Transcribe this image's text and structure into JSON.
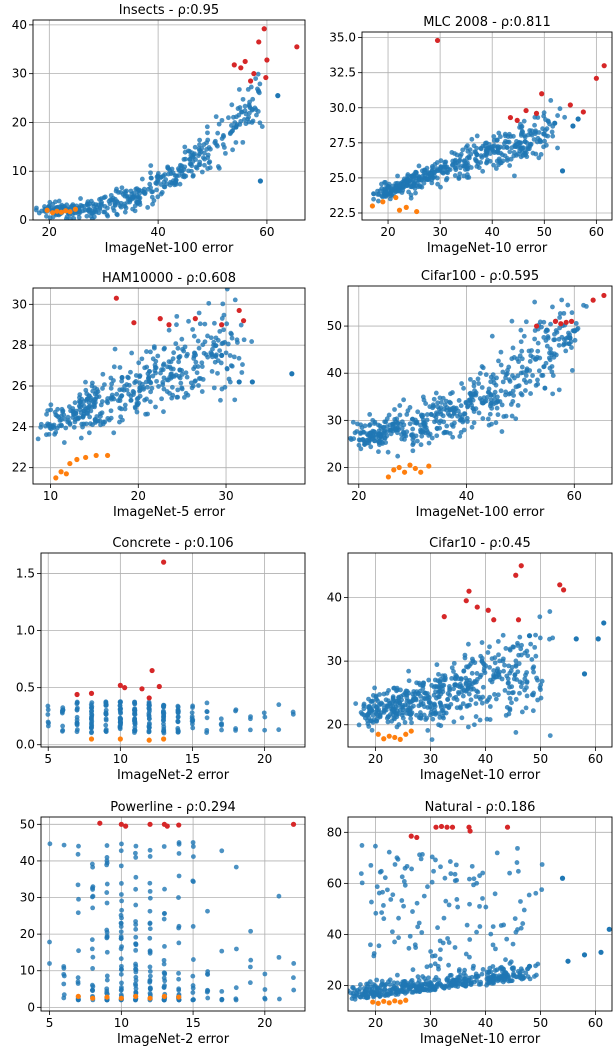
{
  "chart_data": [
    {
      "type": "scatter",
      "title": "Insects - ρ:0.95",
      "xlabel": "ImageNet-100 error",
      "xlim": [
        17,
        67
      ],
      "ylim": [
        0,
        41
      ],
      "xticks": [
        20,
        40,
        60
      ],
      "yticks": [
        0,
        10,
        20,
        30,
        40
      ],
      "grid": true,
      "colors": {
        "main": "#1f77b4",
        "best": "#ff7f0e",
        "worst": "#d62728"
      },
      "cluster": {
        "type": "curve",
        "x0": 20,
        "x1": 59,
        "y_at_x0": 2,
        "y_at_x1": 26,
        "power": 2.3,
        "noise": 2.2,
        "n": 420
      },
      "series": [
        {
          "role": "best",
          "points": [
            [
              19.6,
              2.0
            ],
            [
              20.6,
              1.5
            ],
            [
              21.4,
              1.8
            ],
            [
              22.2,
              1.6
            ],
            [
              23.0,
              1.9
            ],
            [
              23.8,
              1.7
            ],
            [
              24.8,
              2.2
            ]
          ]
        },
        {
          "role": "worst",
          "points": [
            [
              54.0,
              31.8
            ],
            [
              55.2,
              31.2
            ],
            [
              56.0,
              32.5
            ],
            [
              57.0,
              28.5
            ],
            [
              57.6,
              30.0
            ],
            [
              58.5,
              36.5
            ],
            [
              59.5,
              39.2
            ],
            [
              59.8,
              29.2
            ],
            [
              60.0,
              32.8
            ],
            [
              65.5,
              35.5
            ]
          ]
        },
        {
          "role": "main",
          "points": [
            [
              58.8,
              8.0
            ],
            [
              62.0,
              25.5
            ]
          ]
        }
      ]
    },
    {
      "type": "scatter",
      "title": "MLC 2008 - ρ:0.811",
      "xlabel": "ImageNet-10 error",
      "xlim": [
        15,
        63
      ],
      "ylim": [
        22.0,
        35.4
      ],
      "xticks": [
        20,
        30,
        40,
        50,
        60
      ],
      "yticks": [
        22.5,
        25.0,
        27.5,
        30.0,
        32.5,
        35.0
      ],
      "grid": true,
      "colors": {
        "main": "#1f77b4",
        "best": "#ff7f0e",
        "worst": "#d62728"
      },
      "cluster": {
        "type": "curve",
        "x0": 18,
        "x1": 52,
        "y_at_x0": 23.8,
        "y_at_x1": 28.6,
        "power": 1.0,
        "noise": 0.7,
        "n": 450
      },
      "series": [
        {
          "role": "best",
          "points": [
            [
              17.0,
              23.0
            ],
            [
              19.0,
              23.3
            ],
            [
              21.5,
              23.6
            ],
            [
              22.2,
              22.7
            ],
            [
              23.5,
              22.9
            ],
            [
              25.5,
              22.6
            ]
          ]
        },
        {
          "role": "worst",
          "points": [
            [
              29.5,
              34.8
            ],
            [
              43.5,
              29.3
            ],
            [
              44.8,
              29.1
            ],
            [
              46.5,
              29.8
            ],
            [
              48.5,
              29.6
            ],
            [
              49.5,
              31.0
            ],
            [
              55.0,
              30.2
            ],
            [
              57.5,
              29.7
            ],
            [
              60.0,
              32.1
            ],
            [
              61.5,
              33.0
            ]
          ]
        },
        {
          "role": "main",
          "points": [
            [
              53.5,
              25.5
            ],
            [
              55.5,
              28.7
            ],
            [
              56.5,
              29.2
            ],
            [
              52.0,
              28.9
            ]
          ]
        }
      ]
    },
    {
      "type": "scatter",
      "title": "HAM10000 - ρ:0.608",
      "xlabel": "ImageNet-5 error",
      "xlim": [
        8,
        39
      ],
      "ylim": [
        21.2,
        30.8
      ],
      "xticks": [
        10,
        20,
        30
      ],
      "yticks": [
        22,
        24,
        26,
        28,
        30
      ],
      "grid": true,
      "colors": {
        "main": "#1f77b4",
        "best": "#ff7f0e",
        "worst": "#d62728"
      },
      "cluster": {
        "type": "curve",
        "x0": 10,
        "x1": 31,
        "y_at_x0": 24.2,
        "y_at_x1": 28.0,
        "power": 1.0,
        "noise": 1.05,
        "n": 430
      },
      "series": [
        {
          "role": "best",
          "points": [
            [
              10.6,
              21.5
            ],
            [
              11.2,
              21.8
            ],
            [
              11.8,
              21.7
            ],
            [
              12.2,
              22.2
            ],
            [
              13.0,
              22.4
            ],
            [
              14.0,
              22.5
            ],
            [
              15.2,
              22.6
            ],
            [
              16.5,
              22.6
            ]
          ]
        },
        {
          "role": "worst",
          "points": [
            [
              17.5,
              30.3
            ],
            [
              19.5,
              29.1
            ],
            [
              22.5,
              29.3
            ],
            [
              23.5,
              29.0
            ],
            [
              26.5,
              29.3
            ],
            [
              29.5,
              29.0
            ],
            [
              31.5,
              29.7
            ],
            [
              32.0,
              29.2
            ]
          ]
        },
        {
          "role": "main",
          "points": [
            [
              37.5,
              26.6
            ],
            [
              33.0,
              26.2
            ],
            [
              31.5,
              26.2
            ],
            [
              29.5,
              27.5
            ]
          ]
        }
      ]
    },
    {
      "type": "scatter",
      "title": "Cifar100 - ρ:0.595",
      "xlabel": "ImageNet-100 error",
      "xlim": [
        18,
        67
      ],
      "ylim": [
        16.5,
        58.5
      ],
      "xticks": [
        20,
        40,
        60
      ],
      "yticks": [
        20,
        30,
        40,
        50
      ],
      "grid": true,
      "colors": {
        "main": "#1f77b4",
        "best": "#ff7f0e",
        "worst": "#d62728"
      },
      "cluster": {
        "type": "curve",
        "x0": 20,
        "x1": 60,
        "y_at_x0": 27.0,
        "y_at_x1": 49.0,
        "power": 2.0,
        "noise": 4.0,
        "n": 520
      },
      "series": [
        {
          "role": "best",
          "points": [
            [
              25.5,
              18.0
            ],
            [
              26.5,
              19.5
            ],
            [
              27.5,
              20.0
            ],
            [
              28.5,
              19.0
            ],
            [
              29.5,
              20.5
            ],
            [
              30.5,
              19.8
            ],
            [
              31.5,
              19.0
            ],
            [
              33.0,
              20.3
            ]
          ]
        },
        {
          "role": "worst",
          "points": [
            [
              53.0,
              50.0
            ],
            [
              56.5,
              51.0
            ],
            [
              57.5,
              50.5
            ],
            [
              58.5,
              50.8
            ],
            [
              59.5,
              51.0
            ],
            [
              63.5,
              55.5
            ],
            [
              65.5,
              56.5
            ]
          ]
        },
        {
          "role": "main",
          "points": [
            [
              60.0,
              49.0
            ],
            [
              59.2,
              47.5
            ]
          ]
        }
      ]
    },
    {
      "type": "scatter",
      "title": "Concrete - ρ:0.106",
      "xlabel": "ImageNet-2 error",
      "xlim": [
        4.5,
        22.8
      ],
      "ylim": [
        -0.02,
        1.68
      ],
      "xticks": [
        5,
        10,
        15,
        20
      ],
      "yticks": [
        0.0,
        0.5,
        1.0,
        1.5
      ],
      "grid": true,
      "colors": {
        "main": "#1f77b4",
        "best": "#ff7f0e",
        "worst": "#d62728"
      },
      "cluster": {
        "type": "columns",
        "columns": [
          [
            5,
            6
          ],
          [
            6,
            10
          ],
          [
            7,
            14
          ],
          [
            8,
            22
          ],
          [
            9,
            18
          ],
          [
            10,
            28
          ],
          [
            11,
            28
          ],
          [
            12,
            24
          ],
          [
            13,
            22
          ],
          [
            14,
            18
          ],
          [
            15,
            10
          ],
          [
            16,
            6
          ],
          [
            17,
            5
          ],
          [
            18,
            4
          ],
          [
            19,
            3
          ],
          [
            20,
            3
          ],
          [
            21,
            2
          ],
          [
            22,
            2
          ]
        ],
        "ymin": 0.1,
        "ymax": 0.38
      },
      "series": [
        {
          "role": "best",
          "points": [
            [
              8.0,
              0.05
            ],
            [
              10.0,
              0.05
            ],
            [
              12.0,
              0.04
            ],
            [
              13.0,
              0.05
            ]
          ]
        },
        {
          "role": "worst",
          "points": [
            [
              7.0,
              0.44
            ],
            [
              8.0,
              0.45
            ],
            [
              10.0,
              0.52
            ],
            [
              10.3,
              0.5
            ],
            [
              11.5,
              0.49
            ],
            [
              12.0,
              0.41
            ],
            [
              12.2,
              0.65
            ],
            [
              12.7,
              0.51
            ],
            [
              13.0,
              1.6
            ]
          ]
        }
      ]
    },
    {
      "type": "scatter",
      "title": "Cifar10 - ρ:0.45",
      "xlabel": "ImageNet-10 error",
      "xlim": [
        15,
        63
      ],
      "ylim": [
        16.5,
        47
      ],
      "xticks": [
        20,
        30,
        40,
        50,
        60
      ],
      "yticks": [
        20,
        30,
        40
      ],
      "grid": true,
      "colors": {
        "main": "#1f77b4",
        "best": "#ff7f0e",
        "worst": "#d62728"
      },
      "cluster": {
        "type": "curve",
        "x0": 18,
        "x1": 50,
        "y_at_x0": 21.5,
        "y_at_x1": 29.0,
        "power": 1.0,
        "noise": 3.2,
        "n": 520
      },
      "series": [
        {
          "role": "best",
          "points": [
            [
              20.5,
              18.5
            ],
            [
              21.5,
              17.8
            ],
            [
              22.5,
              18.2
            ],
            [
              23.5,
              18.0
            ],
            [
              24.5,
              17.7
            ],
            [
              25.5,
              18.5
            ],
            [
              26.5,
              19.0
            ]
          ]
        },
        {
          "role": "worst",
          "points": [
            [
              32.5,
              37.0
            ],
            [
              36.5,
              39.5
            ],
            [
              37.0,
              41.0
            ],
            [
              38.5,
              38.5
            ],
            [
              40.5,
              38.0
            ],
            [
              41.5,
              36.5
            ],
            [
              45.5,
              43.5
            ],
            [
              46.0,
              36.5
            ],
            [
              46.5,
              45.0
            ],
            [
              53.5,
              42.0
            ],
            [
              54.2,
              41.2
            ]
          ]
        },
        {
          "role": "main",
          "points": [
            [
              56.5,
              33.5
            ],
            [
              60.5,
              33.5
            ],
            [
              61.5,
              36.0
            ],
            [
              58.0,
              28.0
            ],
            [
              48.0,
              34.0
            ]
          ]
        }
      ]
    },
    {
      "type": "scatter",
      "title": "Powerline - ρ:0.294",
      "xlabel": "ImageNet-2 error",
      "xlim": [
        4.4,
        22.8
      ],
      "ylim": [
        -1,
        52
      ],
      "xticks": [
        5,
        10,
        15,
        20
      ],
      "yticks": [
        0,
        10,
        20,
        30,
        40,
        50
      ],
      "grid": true,
      "colors": {
        "main": "#1f77b4",
        "best": "#ff7f0e",
        "worst": "#d62728"
      },
      "cluster": {
        "type": "columns",
        "columns": [
          [
            5,
            3
          ],
          [
            6,
            8
          ],
          [
            7,
            14
          ],
          [
            8,
            20
          ],
          [
            9,
            28
          ],
          [
            10,
            34
          ],
          [
            11,
            32
          ],
          [
            12,
            28
          ],
          [
            13,
            26
          ],
          [
            14,
            22
          ],
          [
            15,
            14
          ],
          [
            16,
            8
          ],
          [
            17,
            6
          ],
          [
            18,
            5
          ],
          [
            19,
            4
          ],
          [
            20,
            4
          ],
          [
            21,
            3
          ],
          [
            22,
            3
          ]
        ],
        "ymin": 2,
        "ymax": 46,
        "skew": 2.2
      },
      "series": [
        {
          "role": "best",
          "points": [
            [
              7.0,
              3.0
            ],
            [
              8.0,
              2.5
            ],
            [
              9.0,
              2.8
            ],
            [
              10.0,
              2.5
            ],
            [
              11.0,
              3.0
            ],
            [
              12.0,
              2.5
            ],
            [
              13.0,
              3.0
            ],
            [
              14.0,
              2.8
            ]
          ]
        },
        {
          "role": "worst",
          "points": [
            [
              8.5,
              50.3
            ],
            [
              10.0,
              50.0
            ],
            [
              10.3,
              49.5
            ],
            [
              12.0,
              50.0
            ],
            [
              13.0,
              50.0
            ],
            [
              13.2,
              49.5
            ],
            [
              14.0,
              49.8
            ],
            [
              22.0,
              50.0
            ]
          ]
        }
      ]
    },
    {
      "type": "scatter",
      "title": "Natural - ρ:0.186",
      "xlabel": "ImageNet-10 error",
      "xlim": [
        15,
        63
      ],
      "ylim": [
        10,
        86
      ],
      "xticks": [
        20,
        30,
        40,
        50,
        60
      ],
      "yticks": [
        20,
        40,
        60,
        80
      ],
      "grid": true,
      "colors": {
        "main": "#1f77b4",
        "best": "#ff7f0e",
        "worst": "#d62728"
      },
      "cluster": {
        "type": "natural",
        "n": 540
      },
      "series": [
        {
          "role": "best",
          "points": [
            [
              19.5,
              13.5
            ],
            [
              20.5,
              13.0
            ],
            [
              21.5,
              13.8
            ],
            [
              22.5,
              13.2
            ],
            [
              23.5,
              14.0
            ],
            [
              24.5,
              13.5
            ],
            [
              25.5,
              14.2
            ]
          ]
        },
        {
          "role": "worst",
          "points": [
            [
              26.5,
              78.5
            ],
            [
              27.5,
              78.0
            ],
            [
              31.0,
              82.0
            ],
            [
              32.0,
              82.3
            ],
            [
              33.0,
              82.0
            ],
            [
              34.0,
              82.0
            ],
            [
              37.0,
              82.0
            ],
            [
              37.2,
              80.5
            ],
            [
              44.0,
              82.0
            ]
          ]
        },
        {
          "role": "main",
          "points": [
            [
              48.0,
              27.5
            ],
            [
              55.0,
              29.5
            ],
            [
              58.0,
              32.0
            ],
            [
              61.0,
              33.0
            ],
            [
              62.5,
              42.0
            ],
            [
              54.0,
              62.0
            ]
          ]
        }
      ]
    }
  ]
}
